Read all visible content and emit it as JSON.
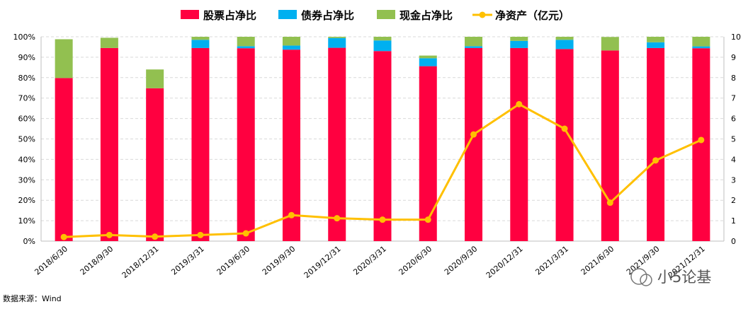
{
  "chart_data": {
    "type": "bar",
    "stacked": true,
    "categories": [
      "2018/6/30",
      "2018/9/30",
      "2018/12/31",
      "2019/3/31",
      "2019/6/30",
      "2019/9/30",
      "2019/12/31",
      "2020/3/31",
      "2020/6/30",
      "2020/9/30",
      "2020/12/31",
      "2021/3/31",
      "2021/6/30",
      "2021/9/30",
      "2021/12/31"
    ],
    "series": [
      {
        "name": "股票占净比",
        "kind": "bar",
        "axis": "left",
        "color": "#FF0040",
        "values": [
          79.8,
          94.5,
          74.8,
          94.5,
          94.4,
          93.7,
          94.6,
          93.0,
          85.6,
          94.5,
          94.5,
          94.0,
          93.3,
          94.5,
          94.4
        ]
      },
      {
        "name": "债券占净比",
        "kind": "bar",
        "axis": "left",
        "color": "#00B0F0",
        "values": [
          0.0,
          0.0,
          0.0,
          4.0,
          1.0,
          2.0,
          4.8,
          5.2,
          3.9,
          0.9,
          3.5,
          4.5,
          0.0,
          2.8,
          0.9
        ]
      },
      {
        "name": "现金占净比",
        "kind": "bar",
        "axis": "left",
        "color": "#92C050",
        "values": [
          19.0,
          5.0,
          9.2,
          1.5,
          4.6,
          4.3,
          0.6,
          1.8,
          1.3,
          4.6,
          2.0,
          1.5,
          6.6,
          2.7,
          4.7
        ]
      },
      {
        "name": "净资产（亿元）",
        "kind": "line",
        "axis": "right",
        "color": "#FFC000",
        "values": [
          0.2,
          0.3,
          0.22,
          0.3,
          0.38,
          1.27,
          1.12,
          1.05,
          1.05,
          5.22,
          6.7,
          5.5,
          1.88,
          3.95,
          4.95
        ]
      }
    ],
    "y_left": {
      "min": 0,
      "max": 100,
      "step": 10,
      "tick_labels": [
        "0%",
        "10%",
        "20%",
        "30%",
        "40%",
        "50%",
        "60%",
        "70%",
        "80%",
        "90%",
        "100%"
      ]
    },
    "y_right": {
      "min": 0,
      "max": 10,
      "step": 1,
      "tick_labels": [
        "0",
        "1",
        "2",
        "3",
        "4",
        "5",
        "6",
        "7",
        "8",
        "9",
        "10"
      ]
    },
    "grid": true,
    "legend_position": "top-center",
    "source": "数据来源：Wind",
    "watermark": "小5论基"
  }
}
